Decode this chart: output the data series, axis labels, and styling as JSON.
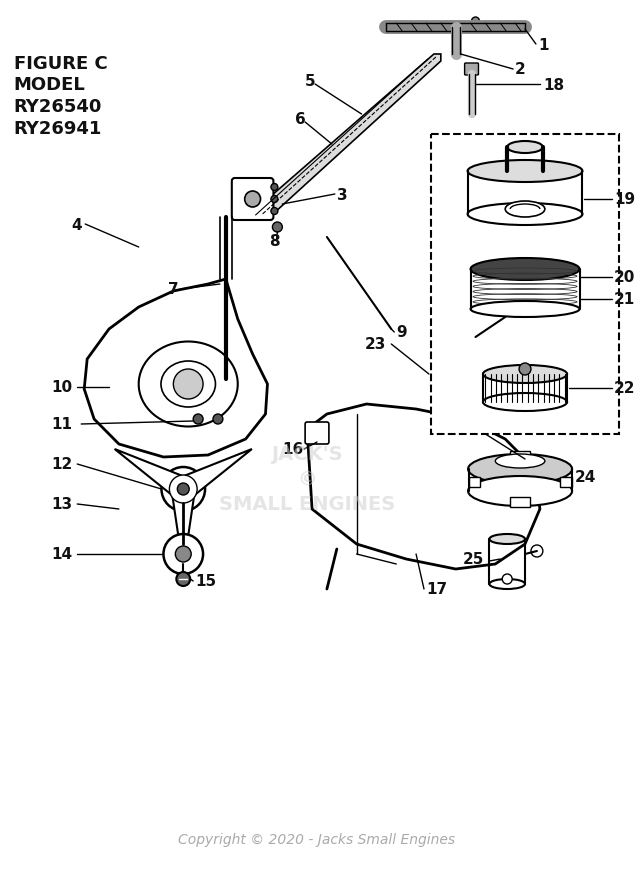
{
  "title": "FIGURE C\nMODEL\nRY26540\nRY26941",
  "copyright": "Copyright © 2020 - Jacks Small Engines",
  "bg_color": "#ffffff",
  "label_color": "#111111",
  "watermark_color": "#cccccc",
  "fig_w": 6.4,
  "fig_h": 8.7,
  "dpi": 100
}
